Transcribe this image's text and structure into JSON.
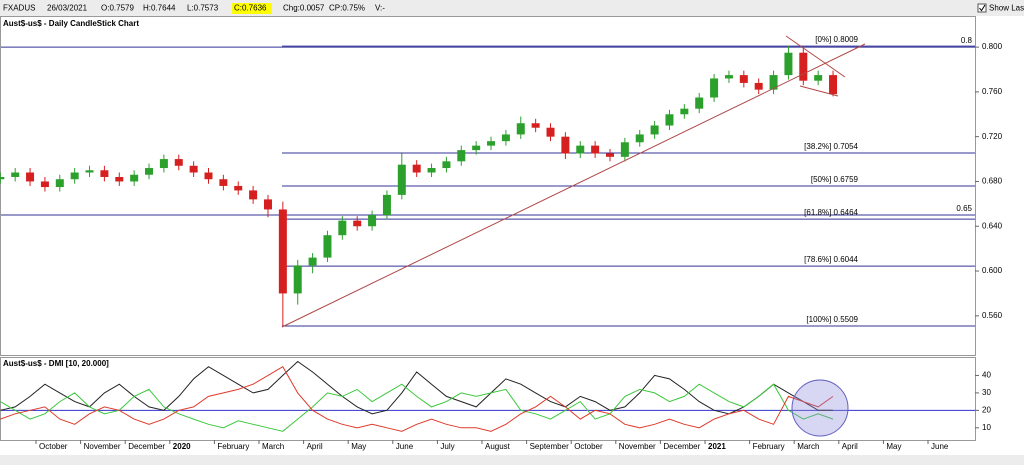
{
  "header": {
    "symbol": "FXADUS",
    "date": "26/03/2021",
    "open": "O:0.7579",
    "high": "H:0.7644",
    "low": "L:0.7573",
    "close": "C:0.7636",
    "change": "Chg:0.0057",
    "change_pct": "CP:0.75%",
    "volume": "V:-",
    "show_last": "Show Last"
  },
  "chart_data": [
    {
      "type": "candlestick",
      "title": "Aust$-us$ - Daily CandleStick Chart",
      "open": [
        0.682,
        0.684,
        0.688,
        0.68,
        0.675,
        0.682,
        0.688,
        0.69,
        0.684,
        0.68,
        0.686,
        0.692,
        0.7,
        0.694,
        0.688,
        0.682,
        0.676,
        0.672,
        0.664,
        0.655,
        0.58,
        0.605,
        0.612,
        0.632,
        0.645,
        0.64,
        0.65,
        0.668,
        0.695,
        0.688,
        0.692,
        0.698,
        0.708,
        0.712,
        0.716,
        0.722,
        0.732,
        0.728,
        0.72,
        0.705,
        0.712,
        0.705,
        0.702,
        0.715,
        0.722,
        0.73,
        0.74,
        0.745,
        0.755,
        0.772,
        0.775,
        0.768,
        0.762,
        0.775,
        0.795,
        0.77,
        0.775
      ],
      "high": [
        0.688,
        0.692,
        0.692,
        0.684,
        0.686,
        0.692,
        0.694,
        0.694,
        0.688,
        0.69,
        0.696,
        0.704,
        0.704,
        0.698,
        0.692,
        0.686,
        0.68,
        0.676,
        0.668,
        0.662,
        0.61,
        0.616,
        0.636,
        0.649,
        0.649,
        0.654,
        0.672,
        0.705,
        0.699,
        0.696,
        0.702,
        0.712,
        0.716,
        0.72,
        0.726,
        0.738,
        0.736,
        0.732,
        0.724,
        0.716,
        0.716,
        0.709,
        0.719,
        0.726,
        0.734,
        0.744,
        0.749,
        0.759,
        0.776,
        0.779,
        0.779,
        0.772,
        0.779,
        0.801,
        0.799,
        0.779,
        0.779
      ],
      "low": [
        0.678,
        0.68,
        0.676,
        0.671,
        0.671,
        0.678,
        0.684,
        0.68,
        0.676,
        0.676,
        0.682,
        0.688,
        0.69,
        0.684,
        0.678,
        0.672,
        0.668,
        0.66,
        0.648,
        0.551,
        0.57,
        0.598,
        0.608,
        0.628,
        0.636,
        0.636,
        0.646,
        0.664,
        0.684,
        0.684,
        0.688,
        0.694,
        0.704,
        0.708,
        0.712,
        0.718,
        0.724,
        0.716,
        0.7,
        0.701,
        0.701,
        0.698,
        0.698,
        0.711,
        0.718,
        0.726,
        0.736,
        0.741,
        0.751,
        0.768,
        0.764,
        0.758,
        0.758,
        0.771,
        0.766,
        0.766,
        0.756
      ],
      "close": [
        0.684,
        0.688,
        0.68,
        0.675,
        0.682,
        0.688,
        0.69,
        0.684,
        0.68,
        0.686,
        0.692,
        0.7,
        0.694,
        0.688,
        0.682,
        0.676,
        0.672,
        0.664,
        0.655,
        0.58,
        0.605,
        0.612,
        0.632,
        0.645,
        0.64,
        0.65,
        0.668,
        0.695,
        0.688,
        0.692,
        0.698,
        0.708,
        0.712,
        0.716,
        0.722,
        0.732,
        0.728,
        0.72,
        0.705,
        0.712,
        0.705,
        0.702,
        0.715,
        0.722,
        0.73,
        0.74,
        0.745,
        0.755,
        0.772,
        0.775,
        0.768,
        0.762,
        0.775,
        0.795,
        0.77,
        0.775,
        0.758
      ],
      "up_color": "#2ca02c",
      "down_color": "#d62020",
      "ylim": [
        0.525,
        0.826
      ],
      "yticks": [
        {
          "value": 0.56,
          "label": "0.560"
        },
        {
          "value": 0.6,
          "label": "0.600"
        },
        {
          "value": 0.64,
          "label": "0.640"
        },
        {
          "value": 0.68,
          "label": "0.680"
        },
        {
          "value": 0.72,
          "label": "0.720"
        },
        {
          "value": 0.76,
          "label": "0.760"
        },
        {
          "value": 0.8,
          "label": "0.800"
        }
      ],
      "fib_levels": [
        {
          "value": 0.8009,
          "label": "[0%] 0.8009"
        },
        {
          "value": 0.7054,
          "label": "[38.2%] 0.7054"
        },
        {
          "value": 0.6759,
          "label": "[50%] 0.6759"
        },
        {
          "value": 0.6464,
          "label": "[61.8%] 0.6464"
        },
        {
          "value": 0.6044,
          "label": "[78.6%] 0.6044"
        },
        {
          "value": 0.5509,
          "label": "[100%] 0.5509"
        }
      ],
      "hlines": [
        0.8,
        0.65
      ],
      "line_color": "#333399"
    },
    {
      "type": "line",
      "title": "Aust$-us$ - DMI [10, 20.000]",
      "series": [
        {
          "color": "#222222",
          "values": [
            20,
            22,
            28,
            35,
            30,
            25,
            22,
            30,
            35,
            28,
            22,
            20,
            28,
            38,
            45,
            40,
            35,
            30,
            32,
            40,
            48,
            42,
            35,
            28,
            22,
            18,
            20,
            30,
            42,
            35,
            28,
            25,
            22,
            30,
            38,
            35,
            30,
            25,
            22,
            28,
            25,
            20,
            22,
            30,
            40,
            38,
            32,
            25,
            20,
            18,
            22,
            28,
            35,
            30,
            25,
            20,
            20
          ]
        },
        {
          "color": "#3cc83c",
          "values": [
            25,
            20,
            15,
            18,
            25,
            30,
            22,
            18,
            20,
            28,
            32,
            22,
            18,
            15,
            12,
            10,
            14,
            12,
            10,
            8,
            15,
            22,
            30,
            28,
            32,
            25,
            30,
            35,
            28,
            22,
            25,
            30,
            28,
            30,
            32,
            20,
            18,
            15,
            20,
            25,
            15,
            18,
            28,
            32,
            30,
            25,
            28,
            35,
            30,
            25,
            22,
            28,
            35,
            20,
            15,
            18,
            15
          ]
        },
        {
          "color": "#e03a2a",
          "values": [
            15,
            18,
            20,
            22,
            15,
            12,
            18,
            22,
            20,
            15,
            12,
            15,
            20,
            22,
            28,
            30,
            32,
            35,
            40,
            45,
            30,
            20,
            15,
            12,
            10,
            12,
            10,
            8,
            12,
            15,
            12,
            10,
            10,
            8,
            12,
            18,
            22,
            28,
            22,
            15,
            20,
            18,
            12,
            10,
            12,
            15,
            12,
            10,
            15,
            18,
            20,
            15,
            12,
            28,
            25,
            22,
            28
          ]
        }
      ],
      "threshold": 20,
      "ylim": [
        3,
        50
      ],
      "yticks": [
        10,
        20,
        30,
        40
      ],
      "month_labels": [
        "October",
        "November",
        "December",
        "2020",
        "February",
        "March",
        "April",
        "May",
        "June",
        "July",
        "August",
        "September",
        "October",
        "November",
        "December",
        "2021",
        "February",
        "March",
        "April",
        "May",
        "June"
      ]
    }
  ]
}
